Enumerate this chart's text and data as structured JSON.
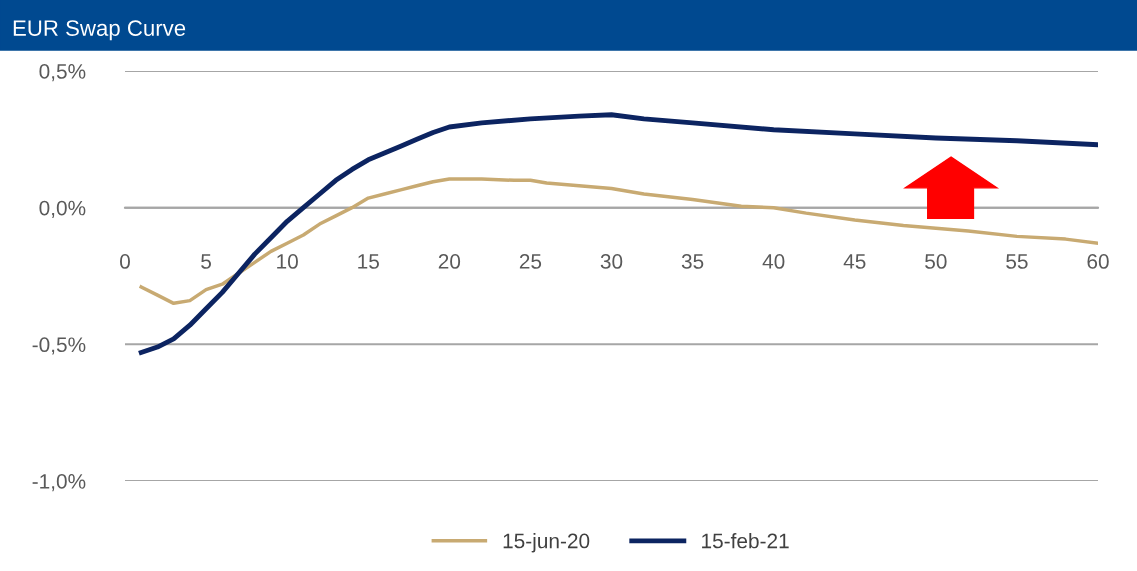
{
  "chart_data": {
    "type": "line",
    "title": "EUR Swap Curve",
    "series": [
      {
        "name": "15-jun-20",
        "color": "#c8aa72",
        "x": [
          1,
          2,
          3,
          4,
          5,
          6,
          7,
          8,
          9,
          10,
          11,
          12,
          13,
          14,
          15,
          16,
          17,
          18,
          19,
          20,
          22,
          24,
          25,
          26,
          28,
          30,
          32,
          35,
          38,
          40,
          42,
          45,
          48,
          50,
          52,
          55,
          58,
          60
        ],
        "values": [
          -0.29,
          -0.32,
          -0.35,
          -0.34,
          -0.3,
          -0.28,
          -0.24,
          -0.2,
          -0.16,
          -0.13,
          -0.1,
          -0.06,
          -0.03,
          0.0,
          0.035,
          0.05,
          0.065,
          0.08,
          0.095,
          0.105,
          0.105,
          0.1,
          0.1,
          0.09,
          0.08,
          0.07,
          0.05,
          0.03,
          0.005,
          0.0,
          -0.02,
          -0.045,
          -0.065,
          -0.075,
          -0.085,
          -0.105,
          -0.115,
          -0.13
        ]
      },
      {
        "name": "15-feb-21",
        "color": "#0c2461",
        "x": [
          1,
          2,
          3,
          4,
          5,
          6,
          7,
          8,
          9,
          10,
          11,
          12,
          13,
          14,
          15,
          16,
          17,
          18,
          19,
          20,
          22,
          25,
          28,
          30,
          32,
          35,
          40,
          45,
          50,
          55,
          60
        ],
        "values": [
          -0.53,
          -0.51,
          -0.48,
          -0.43,
          -0.37,
          -0.31,
          -0.24,
          -0.17,
          -0.11,
          -0.05,
          0.0,
          0.05,
          0.1,
          0.14,
          0.175,
          0.2,
          0.225,
          0.25,
          0.275,
          0.295,
          0.31,
          0.325,
          0.335,
          0.34,
          0.325,
          0.31,
          0.285,
          0.27,
          0.255,
          0.245,
          0.23
        ]
      }
    ],
    "xlim": [
      0,
      60
    ],
    "xticks": [
      0,
      5,
      10,
      15,
      20,
      25,
      30,
      35,
      40,
      45,
      50,
      55,
      60
    ],
    "ylim": [
      -1.0,
      0.5
    ],
    "yticks": [
      {
        "value": -1.0,
        "label": "-1,0%"
      },
      {
        "value": -0.5,
        "label": "-0,5%"
      },
      {
        "value": 0.0,
        "label": "0,0%"
      },
      {
        "value": 0.5,
        "label": "0,5%"
      }
    ],
    "grid": "y",
    "legend": "bottom",
    "marker": "none",
    "line_style": "solid"
  }
}
